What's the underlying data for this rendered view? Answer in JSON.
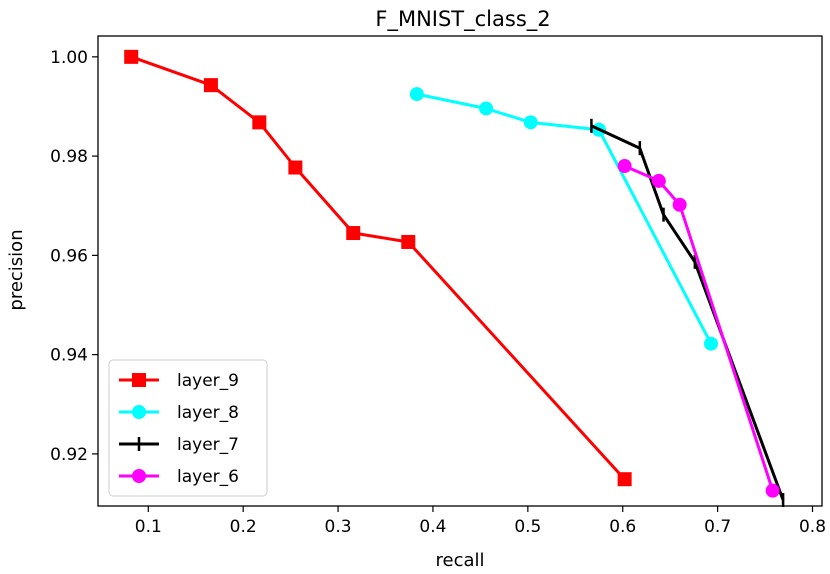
{
  "chart_data": {
    "type": "line",
    "title": "F_MNIST_class_2",
    "xlabel": "recall",
    "ylabel": "precision",
    "xlim": [
      0.047,
      0.81
    ],
    "ylim": [
      0.9095,
      1.0042
    ],
    "xticks": [
      0.1,
      0.2,
      0.3,
      0.4,
      0.5,
      0.6,
      0.7,
      0.8
    ],
    "xtick_labels": [
      "0.1",
      "0.2",
      "0.3",
      "0.4",
      "0.5",
      "0.6",
      "0.7",
      "0.8"
    ],
    "yticks": [
      0.92,
      0.94,
      0.96,
      0.98,
      1.0
    ],
    "ytick_labels": [
      "0.92",
      "0.94",
      "0.96",
      "0.98",
      "1.00"
    ],
    "legend_position": "lower-left",
    "series": [
      {
        "name": "layer_9",
        "color": "#ff0000",
        "marker": "square",
        "x": [
          0.082,
          0.166,
          0.217,
          0.255,
          0.316,
          0.374,
          0.602
        ],
        "y": [
          1.0,
          0.9943,
          0.9868,
          0.9777,
          0.9645,
          0.9627,
          0.9149
        ]
      },
      {
        "name": "layer_8",
        "color": "#00ffff",
        "marker": "circle",
        "x": [
          0.383,
          0.456,
          0.503,
          0.575,
          0.693
        ],
        "y": [
          0.9925,
          0.9896,
          0.9868,
          0.9853,
          0.9422
        ]
      },
      {
        "name": "layer_7",
        "color": "#000000",
        "marker": "vline",
        "x": [
          0.567,
          0.618,
          0.643,
          0.676,
          0.769
        ],
        "y": [
          0.9861,
          0.9816,
          0.9682,
          0.9587,
          0.9107
        ]
      },
      {
        "name": "layer_6",
        "color": "#ff00ff",
        "marker": "circle",
        "x": [
          0.602,
          0.638,
          0.66,
          0.758
        ],
        "y": [
          0.978,
          0.975,
          0.9702,
          0.9126
        ]
      }
    ]
  }
}
